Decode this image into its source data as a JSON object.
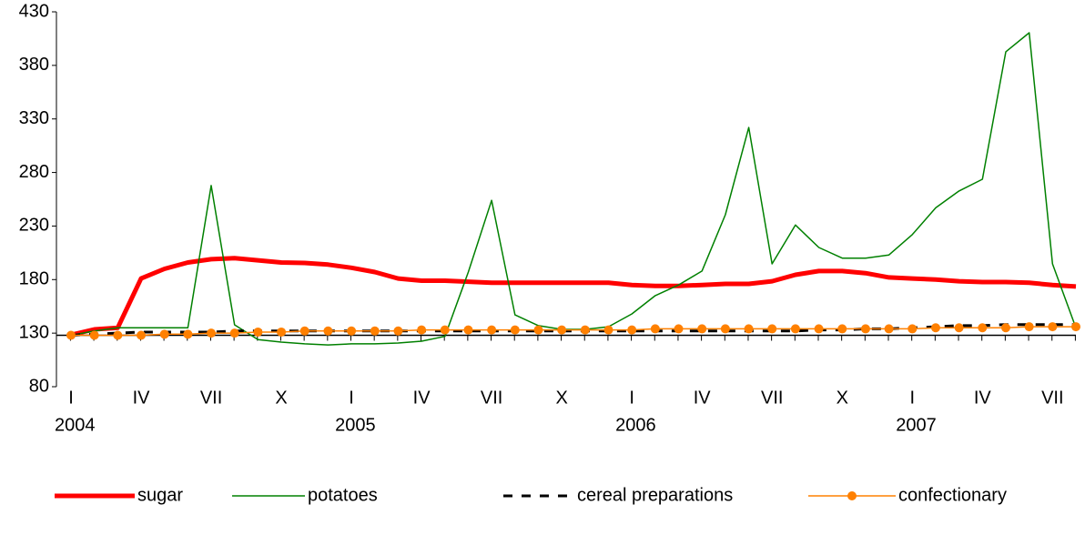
{
  "chart_data": {
    "type": "line",
    "categories": [
      "I",
      null,
      null,
      "IV",
      null,
      null,
      "VII",
      null,
      null,
      "X",
      null,
      null,
      "I",
      null,
      null,
      "IV",
      null,
      null,
      "VII",
      null,
      null,
      "X",
      null,
      null,
      "I",
      null,
      null,
      "IV",
      null,
      null,
      "VII",
      null,
      null,
      "X",
      null,
      null,
      "I",
      null,
      null,
      "IV",
      null,
      null,
      "VII",
      null
    ],
    "category_groups": [
      "2004",
      "2005",
      "2006",
      "2007"
    ],
    "ylim": [
      80,
      430
    ],
    "yticks": [
      80,
      130,
      180,
      230,
      280,
      330,
      380,
      430
    ],
    "x_axis_crosses": 128,
    "grid": false,
    "legend": "bottom",
    "series": [
      {
        "name": "sugar",
        "color": "#ff0000",
        "line_width": 5,
        "dashed": false,
        "marker": false,
        "values": [
          128.4,
          133.5,
          135,
          181,
          190,
          196,
          199,
          200,
          198,
          196,
          195.5,
          194,
          191,
          187,
          181,
          179,
          179,
          178,
          177,
          177,
          177,
          177,
          177,
          177,
          175,
          174,
          174,
          175,
          176,
          176,
          178.5,
          184.5,
          188,
          188,
          186,
          182,
          181,
          180,
          178.5,
          177.7,
          177.7,
          177,
          175,
          173.5
        ]
      },
      {
        "name": "potatoes",
        "color": "#008000",
        "line_width": 1.5,
        "dashed": false,
        "marker": false,
        "values": [
          128,
          132,
          135,
          135,
          135,
          135,
          267.8,
          137.8,
          124,
          121.6,
          120,
          119,
          120,
          120,
          120.8,
          122.5,
          127,
          187,
          254,
          147,
          137,
          133.5,
          133.5,
          136,
          148,
          165,
          175,
          188,
          240.6,
          322,
          194.7,
          231,
          210,
          200,
          200,
          203,
          222,
          247,
          262.7,
          273.7,
          392.7,
          410.5,
          194.7,
          135
        ]
      },
      {
        "name": "cereal preparations",
        "color": "#000000",
        "line_width": 3,
        "dashed": true,
        "marker": false,
        "values": [
          128,
          129,
          130,
          131,
          131,
          131,
          131,
          132,
          132,
          132,
          132,
          132,
          132,
          132,
          132,
          132,
          132,
          132,
          132,
          132,
          132,
          132,
          132,
          132,
          132,
          132,
          132,
          132,
          132,
          132,
          132,
          132,
          133,
          133,
          134,
          134,
          135,
          136,
          137,
          137,
          138,
          138,
          138,
          138
        ]
      },
      {
        "name": "confectionary",
        "color": "#ff8000",
        "line_width": 1.5,
        "dashed": false,
        "marker": true,
        "values": [
          128,
          128,
          128,
          128,
          129,
          129,
          130,
          130,
          131,
          131,
          132,
          132,
          132,
          132,
          132,
          133,
          133,
          133,
          133,
          133,
          133,
          133,
          133,
          133,
          133,
          134,
          134,
          134,
          134,
          134,
          134,
          134,
          134,
          134,
          134,
          134,
          134,
          135,
          135,
          135,
          135,
          136,
          136,
          136
        ]
      }
    ]
  }
}
